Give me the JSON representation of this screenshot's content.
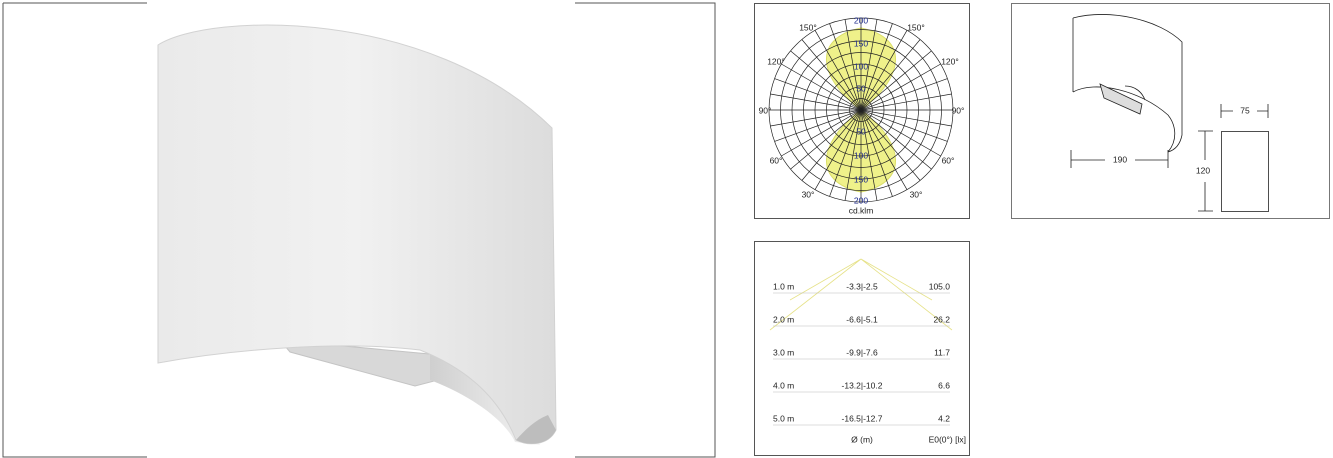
{
  "polar_diagram": {
    "ring_labels_top": [
      "200",
      "150",
      "100",
      "50"
    ],
    "ring_labels_bottom": [
      "50",
      "100",
      "150",
      "200"
    ],
    "angle_labels": [
      "150°",
      "150°",
      "120°",
      "120°",
      "90°",
      "90°",
      "60°",
      "60°",
      "30°",
      "30°"
    ],
    "unit": "cd.klm"
  },
  "dimensions": {
    "depth": "75",
    "width": "190",
    "height": "120"
  },
  "illuminance_table": {
    "rows": [
      [
        "1.0 m",
        "-3.3|-2.5",
        "105.0"
      ],
      [
        "2.0 m",
        "-6.6|-5.1",
        "26.2"
      ],
      [
        "3.0 m",
        "-9.9|-7.6",
        "11.7"
      ],
      [
        "4.0 m",
        "-13.2|-10.2",
        "6.6"
      ],
      [
        "5.0 m",
        "-16.5|-12.7",
        "4.2"
      ]
    ],
    "footer": [
      "Ø (m)",
      "E0(0°) [lx]"
    ]
  }
}
